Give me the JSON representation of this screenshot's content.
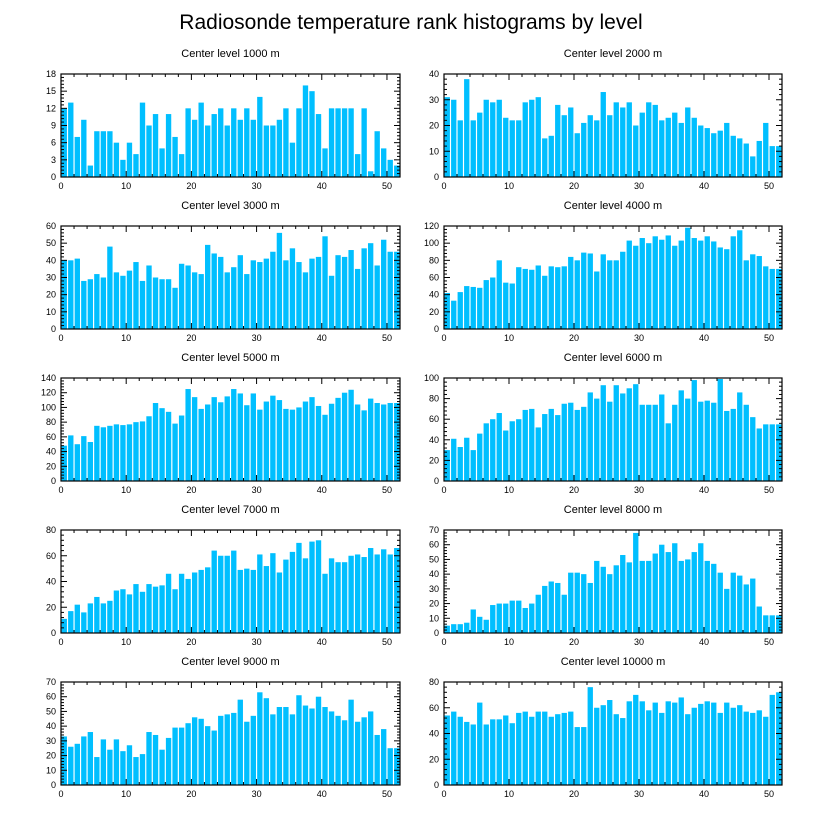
{
  "title": "Radiosonde temperature rank histograms by level",
  "colors": {
    "bar": "#00BFFF",
    "axis": "#000000",
    "background": "#FFFFFF"
  },
  "chart_data": [
    {
      "type": "bar",
      "title": "Center level 1000 m",
      "xlim": [
        0,
        52
      ],
      "ylim": [
        0,
        18
      ],
      "xticks": [
        0,
        10,
        20,
        30,
        40,
        50
      ],
      "yticks": [
        0,
        3,
        6,
        9,
        12,
        15,
        18
      ],
      "x": [
        0,
        1,
        2,
        3,
        4,
        5,
        6,
        7,
        8,
        9,
        10,
        11,
        12,
        13,
        14,
        15,
        16,
        17,
        18,
        19,
        20,
        21,
        22,
        23,
        24,
        25,
        26,
        27,
        28,
        29,
        30,
        31,
        32,
        33,
        34,
        35,
        36,
        37,
        38,
        39,
        40,
        41,
        42,
        43,
        44,
        45,
        46,
        47,
        48,
        49,
        50,
        51
      ],
      "values": [
        12,
        13,
        7,
        10,
        2,
        8,
        8,
        8,
        6,
        3,
        6,
        4,
        13,
        9,
        11,
        5,
        11,
        7,
        4,
        12,
        10,
        13,
        9,
        11,
        12,
        9,
        12,
        10,
        12,
        10,
        14,
        9,
        9,
        10,
        12,
        6,
        12,
        16,
        15,
        11,
        5,
        12,
        12,
        12,
        12,
        4,
        12,
        1,
        8,
        5,
        3,
        2
      ]
    },
    {
      "type": "bar",
      "title": "Center level 2000 m",
      "xlim": [
        0,
        52
      ],
      "ylim": [
        0,
        40
      ],
      "xticks": [
        0,
        10,
        20,
        30,
        40,
        50
      ],
      "yticks": [
        0,
        10,
        20,
        30,
        40
      ],
      "x": [
        0,
        1,
        2,
        3,
        4,
        5,
        6,
        7,
        8,
        9,
        10,
        11,
        12,
        13,
        14,
        15,
        16,
        17,
        18,
        19,
        20,
        21,
        22,
        23,
        24,
        25,
        26,
        27,
        28,
        29,
        30,
        31,
        32,
        33,
        34,
        35,
        36,
        37,
        38,
        39,
        40,
        41,
        42,
        43,
        44,
        45,
        46,
        47,
        48,
        49,
        50,
        51
      ],
      "values": [
        31,
        30,
        22,
        38,
        22,
        25,
        30,
        29,
        30,
        23,
        22,
        22,
        29,
        30,
        31,
        15,
        16,
        28,
        24,
        27,
        17,
        21,
        24,
        22,
        33,
        24,
        29,
        27,
        29,
        20,
        25,
        29,
        28,
        22,
        23,
        25,
        21,
        27,
        23,
        20,
        19,
        17,
        18,
        21,
        16,
        15,
        13,
        8,
        14,
        21,
        12,
        12
      ]
    },
    {
      "type": "bar",
      "title": "Center level 3000 m",
      "xlim": [
        0,
        52
      ],
      "ylim": [
        0,
        60
      ],
      "xticks": [
        0,
        10,
        20,
        30,
        40,
        50
      ],
      "yticks": [
        0,
        10,
        20,
        30,
        40,
        50,
        60
      ],
      "x": [
        0,
        1,
        2,
        3,
        4,
        5,
        6,
        7,
        8,
        9,
        10,
        11,
        12,
        13,
        14,
        15,
        16,
        17,
        18,
        19,
        20,
        21,
        22,
        23,
        24,
        25,
        26,
        27,
        28,
        29,
        30,
        31,
        32,
        33,
        34,
        35,
        36,
        37,
        38,
        39,
        40,
        41,
        42,
        43,
        44,
        45,
        46,
        47,
        48,
        49,
        50,
        51
      ],
      "values": [
        40,
        40,
        41,
        28,
        29,
        32,
        30,
        48,
        33,
        31,
        34,
        39,
        28,
        37,
        30,
        29,
        29,
        24,
        38,
        37,
        33,
        32,
        49,
        44,
        42,
        33,
        36,
        43,
        32,
        40,
        39,
        41,
        45,
        56,
        40,
        47,
        39,
        33,
        41,
        42,
        54,
        31,
        43,
        42,
        46,
        35,
        47,
        50,
        37,
        52,
        45,
        45
      ]
    },
    {
      "type": "bar",
      "title": "Center level 4000 m",
      "xlim": [
        0,
        52
      ],
      "ylim": [
        0,
        120
      ],
      "xticks": [
        0,
        10,
        20,
        30,
        40,
        50
      ],
      "yticks": [
        0,
        20,
        40,
        60,
        80,
        100,
        120
      ],
      "x": [
        0,
        1,
        2,
        3,
        4,
        5,
        6,
        7,
        8,
        9,
        10,
        11,
        12,
        13,
        14,
        15,
        16,
        17,
        18,
        19,
        20,
        21,
        22,
        23,
        24,
        25,
        26,
        27,
        28,
        29,
        30,
        31,
        32,
        33,
        34,
        35,
        36,
        37,
        38,
        39,
        40,
        41,
        42,
        43,
        44,
        45,
        46,
        47,
        48,
        49,
        50,
        51
      ],
      "values": [
        42,
        33,
        43,
        50,
        49,
        48,
        57,
        60,
        80,
        54,
        53,
        72,
        70,
        69,
        74,
        62,
        73,
        72,
        73,
        84,
        80,
        89,
        88,
        67,
        87,
        80,
        80,
        90,
        103,
        97,
        106,
        100,
        108,
        104,
        109,
        97,
        103,
        118,
        106,
        103,
        108,
        102,
        95,
        93,
        108,
        115,
        80,
        87,
        85,
        73,
        70,
        70
      ]
    },
    {
      "type": "bar",
      "title": "Center level 5000 m",
      "xlim": [
        0,
        52
      ],
      "ylim": [
        0,
        140
      ],
      "xticks": [
        0,
        10,
        20,
        30,
        40,
        50
      ],
      "yticks": [
        0,
        20,
        40,
        60,
        80,
        100,
        120,
        140
      ],
      "x": [
        0,
        1,
        2,
        3,
        4,
        5,
        6,
        7,
        8,
        9,
        10,
        11,
        12,
        13,
        14,
        15,
        16,
        17,
        18,
        19,
        20,
        21,
        22,
        23,
        24,
        25,
        26,
        27,
        28,
        29,
        30,
        31,
        32,
        33,
        34,
        35,
        36,
        37,
        38,
        39,
        40,
        41,
        42,
        43,
        44,
        45,
        46,
        47,
        48,
        49,
        50,
        51
      ],
      "values": [
        48,
        62,
        50,
        61,
        53,
        75,
        73,
        75,
        77,
        76,
        77,
        80,
        81,
        88,
        106,
        99,
        94,
        78,
        89,
        125,
        114,
        98,
        104,
        114,
        107,
        115,
        125,
        119,
        103,
        119,
        97,
        108,
        116,
        110,
        98,
        97,
        100,
        108,
        114,
        102,
        90,
        105,
        113,
        120,
        124,
        104,
        96,
        112,
        106,
        104,
        106,
        106
      ]
    },
    {
      "type": "bar",
      "title": "Center level 6000 m",
      "xlim": [
        0,
        52
      ],
      "ylim": [
        0,
        100
      ],
      "xticks": [
        0,
        10,
        20,
        30,
        40,
        50
      ],
      "yticks": [
        0,
        20,
        40,
        60,
        80,
        100
      ],
      "x": [
        0,
        1,
        2,
        3,
        4,
        5,
        6,
        7,
        8,
        9,
        10,
        11,
        12,
        13,
        14,
        15,
        16,
        17,
        18,
        19,
        20,
        21,
        22,
        23,
        24,
        25,
        26,
        27,
        28,
        29,
        30,
        31,
        32,
        33,
        34,
        35,
        36,
        37,
        38,
        39,
        40,
        41,
        42,
        43,
        44,
        45,
        46,
        47,
        48,
        49,
        50,
        51
      ],
      "values": [
        30,
        41,
        33,
        42,
        30,
        46,
        56,
        60,
        66,
        49,
        58,
        60,
        69,
        70,
        52,
        65,
        70,
        64,
        75,
        76,
        69,
        72,
        86,
        80,
        93,
        77,
        93,
        85,
        90,
        94,
        74,
        74,
        74,
        84,
        56,
        74,
        88,
        80,
        98,
        77,
        78,
        76,
        99,
        68,
        70,
        86,
        74,
        62,
        51,
        55,
        55,
        55
      ]
    },
    {
      "type": "bar",
      "title": "Center level 7000 m",
      "xlim": [
        0,
        52
      ],
      "ylim": [
        0,
        80
      ],
      "xticks": [
        0,
        10,
        20,
        30,
        40,
        50
      ],
      "yticks": [
        0,
        20,
        40,
        60,
        80
      ],
      "x": [
        0,
        1,
        2,
        3,
        4,
        5,
        6,
        7,
        8,
        9,
        10,
        11,
        12,
        13,
        14,
        15,
        16,
        17,
        18,
        19,
        20,
        21,
        22,
        23,
        24,
        25,
        26,
        27,
        28,
        29,
        30,
        31,
        32,
        33,
        34,
        35,
        36,
        37,
        38,
        39,
        40,
        41,
        42,
        43,
        44,
        45,
        46,
        47,
        48,
        49,
        50,
        51
      ],
      "values": [
        11,
        17,
        22,
        16,
        23,
        28,
        23,
        25,
        33,
        34,
        30,
        38,
        32,
        38,
        36,
        37,
        46,
        34,
        46,
        42,
        47,
        49,
        51,
        64,
        60,
        60,
        64,
        49,
        50,
        49,
        61,
        52,
        62,
        47,
        57,
        63,
        70,
        58,
        71,
        72,
        46,
        58,
        55,
        55,
        60,
        61,
        59,
        66,
        61,
        65,
        61,
        66
      ]
    },
    {
      "type": "bar",
      "title": "Center level 8000 m",
      "xlim": [
        0,
        52
      ],
      "ylim": [
        0,
        70
      ],
      "xticks": [
        0,
        10,
        20,
        30,
        40,
        50
      ],
      "yticks": [
        0,
        10,
        20,
        30,
        40,
        50,
        60,
        70
      ],
      "x": [
        0,
        1,
        2,
        3,
        4,
        5,
        6,
        7,
        8,
        9,
        10,
        11,
        12,
        13,
        14,
        15,
        16,
        17,
        18,
        19,
        20,
        21,
        22,
        23,
        24,
        25,
        26,
        27,
        28,
        29,
        30,
        31,
        32,
        33,
        34,
        35,
        36,
        37,
        38,
        39,
        40,
        41,
        42,
        43,
        44,
        45,
        46,
        47,
        48,
        49,
        50,
        51
      ],
      "values": [
        5,
        6,
        6,
        7,
        16,
        11,
        9,
        19,
        20,
        20,
        22,
        22,
        17,
        20,
        26,
        32,
        35,
        34,
        26,
        41,
        41,
        40,
        34,
        49,
        45,
        40,
        46,
        53,
        48,
        68,
        49,
        49,
        54,
        60,
        55,
        61,
        49,
        50,
        55,
        61,
        49,
        47,
        41,
        30,
        41,
        39,
        33,
        37,
        18,
        12,
        12,
        12
      ]
    },
    {
      "type": "bar",
      "title": "Center level 9000 m",
      "xlim": [
        0,
        52
      ],
      "ylim": [
        0,
        70
      ],
      "xticks": [
        0,
        10,
        20,
        30,
        40,
        50
      ],
      "yticks": [
        0,
        10,
        20,
        30,
        40,
        50,
        60,
        70
      ],
      "x": [
        0,
        1,
        2,
        3,
        4,
        5,
        6,
        7,
        8,
        9,
        10,
        11,
        12,
        13,
        14,
        15,
        16,
        17,
        18,
        19,
        20,
        21,
        22,
        23,
        24,
        25,
        26,
        27,
        28,
        29,
        30,
        31,
        32,
        33,
        34,
        35,
        36,
        37,
        38,
        39,
        40,
        41,
        42,
        43,
        44,
        45,
        46,
        47,
        48,
        49,
        50,
        51
      ],
      "values": [
        33,
        26,
        28,
        33,
        36,
        19,
        31,
        24,
        31,
        23,
        27,
        19,
        21,
        36,
        34,
        24,
        32,
        39,
        39,
        42,
        46,
        45,
        40,
        37,
        47,
        48,
        49,
        58,
        43,
        47,
        63,
        59,
        48,
        53,
        53,
        48,
        61,
        54,
        52,
        60,
        53,
        50,
        47,
        44,
        58,
        43,
        46,
        50,
        34,
        38,
        25,
        25
      ]
    },
    {
      "type": "bar",
      "title": "Center level 10000 m",
      "xlim": [
        0,
        52
      ],
      "ylim": [
        0,
        80
      ],
      "xticks": [
        0,
        10,
        20,
        30,
        40,
        50
      ],
      "yticks": [
        0,
        20,
        40,
        60,
        80
      ],
      "x": [
        0,
        1,
        2,
        3,
        4,
        5,
        6,
        7,
        8,
        9,
        10,
        11,
        12,
        13,
        14,
        15,
        16,
        17,
        18,
        19,
        20,
        21,
        22,
        23,
        24,
        25,
        26,
        27,
        28,
        29,
        30,
        31,
        32,
        33,
        34,
        35,
        36,
        37,
        38,
        39,
        40,
        41,
        42,
        43,
        44,
        45,
        46,
        47,
        48,
        49,
        50,
        51
      ],
      "values": [
        54,
        57,
        53,
        49,
        47,
        64,
        47,
        51,
        51,
        54,
        48,
        56,
        57,
        53,
        57,
        57,
        53,
        55,
        56,
        57,
        45,
        45,
        76,
        60,
        62,
        66,
        55,
        52,
        65,
        70,
        65,
        58,
        64,
        56,
        65,
        64,
        68,
        55,
        60,
        63,
        65,
        64,
        56,
        64,
        60,
        62,
        57,
        56,
        58,
        53,
        70,
        72
      ]
    }
  ]
}
